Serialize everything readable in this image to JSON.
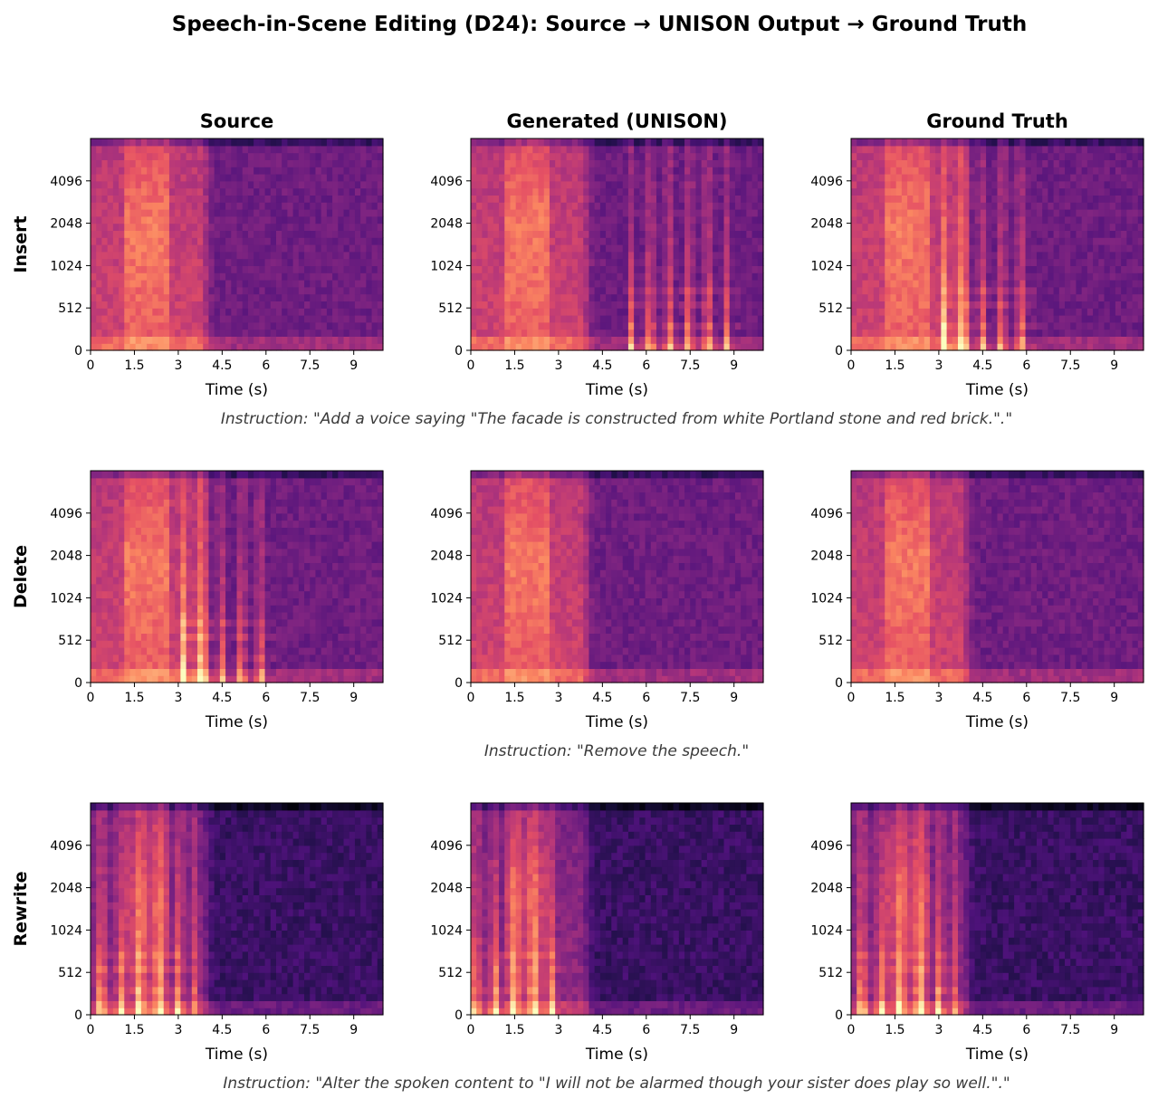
{
  "title": "Speech-in-Scene Editing (D24): Source → UNISON Output → Ground Truth",
  "columns": [
    "Source",
    "Generated (UNISON)",
    "Ground Truth"
  ],
  "rows": [
    {
      "label": "Insert",
      "instruction": "Instruction: \"Add a voice saying \"The facade is constructed from white Portland stone and red brick.\".\""
    },
    {
      "label": "Delete",
      "instruction": "Instruction: \"Remove the speech.\""
    },
    {
      "label": "Rewrite",
      "instruction": "Instruction: \"Alter the spoken content to \"I will not be alarmed though your sister does play so well.\".\""
    }
  ],
  "chart_data": {
    "type": "heatmap",
    "colormap": "magma",
    "xlabel": "Time (s)",
    "x_ticks": [
      "0",
      "1.5",
      "3",
      "4.5",
      "6",
      "7.5",
      "9"
    ],
    "x_tick_values": [
      0,
      1.5,
      3,
      4.5,
      6,
      7.5,
      9
    ],
    "xlim": [
      0,
      10
    ],
    "y_ticks": [
      "0",
      "512",
      "1024",
      "2048",
      "4096"
    ],
    "panels": [
      {
        "row": "Insert",
        "column": "Source",
        "speech": null,
        "background_end_s": 4.2,
        "level": "normal"
      },
      {
        "row": "Insert",
        "column": "Generated (UNISON)",
        "speech": [
          5.3,
          9.2
        ],
        "background_end_s": 4.2,
        "level": "normal"
      },
      {
        "row": "Insert",
        "column": "Ground Truth",
        "speech": [
          3.0,
          6.4
        ],
        "background_end_s": 4.2,
        "level": "normal"
      },
      {
        "row": "Delete",
        "column": "Source",
        "speech": [
          3.0,
          6.4
        ],
        "background_end_s": 4.2,
        "level": "normal"
      },
      {
        "row": "Delete",
        "column": "Generated (UNISON)",
        "speech": null,
        "background_end_s": 4.2,
        "level": "normal"
      },
      {
        "row": "Delete",
        "column": "Ground Truth",
        "speech": null,
        "background_end_s": 4.2,
        "level": "normal"
      },
      {
        "row": "Rewrite",
        "column": "Source",
        "speech": [
          0.2,
          3.6
        ],
        "background_end_s": 4.2,
        "level": "dark"
      },
      {
        "row": "Rewrite",
        "column": "Generated (UNISON)",
        "speech": [
          0.0,
          3.0
        ],
        "background_end_s": 4.2,
        "level": "dark"
      },
      {
        "row": "Rewrite",
        "column": "Ground Truth",
        "speech": [
          0.2,
          3.6
        ],
        "background_end_s": 4.2,
        "level": "dark"
      }
    ]
  }
}
